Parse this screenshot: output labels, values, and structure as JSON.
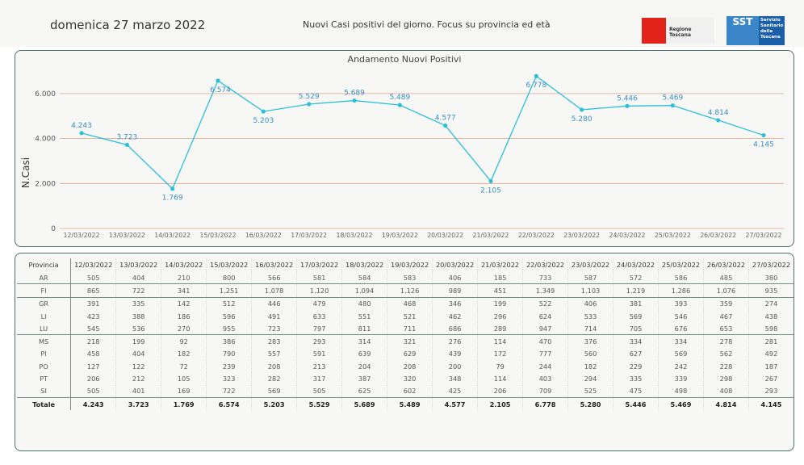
{
  "header": {
    "date": "domenica 27 marzo 2022",
    "subtitle": "Nuovi Casi positivi del giorno. Focus su provincia ed età",
    "logo_regione": "Regione Toscana",
    "logo_sst": "SST",
    "logo_sst_text": "Servizio Sanitario della Toscana"
  },
  "chart_data": {
    "type": "line",
    "title": "Andamento Nuovi Positivi",
    "xlabel": "",
    "ylabel": "N.Casi",
    "categories": [
      "12/03/2022",
      "13/03/2022",
      "14/03/2022",
      "15/03/2022",
      "16/03/2022",
      "17/03/2022",
      "18/03/2022",
      "19/03/2022",
      "20/03/2022",
      "21/03/2022",
      "22/03/2022",
      "23/03/2022",
      "24/03/2022",
      "25/03/2022",
      "26/03/2022",
      "27/03/2022"
    ],
    "values": [
      4243,
      3723,
      1769,
      6574,
      5203,
      5529,
      5689,
      5489,
      4577,
      2105,
      6778,
      5280,
      5446,
      5469,
      4814,
      4145
    ],
    "labels": [
      "4.243",
      "3.723",
      "1.769",
      "6.574",
      "5.203",
      "5.529",
      "5.689",
      "5.489",
      "4.577",
      "2.105",
      "6.778",
      "5.280",
      "5.446",
      "5.469",
      "4.814",
      "4.145"
    ],
    "label_side": [
      "above",
      "above",
      "below",
      "below",
      "below",
      "above",
      "above",
      "above",
      "above",
      "below",
      "below",
      "below",
      "above",
      "above",
      "above",
      "below"
    ],
    "yticks": [
      0,
      2000,
      4000,
      6000
    ],
    "ytick_labels": [
      "0",
      "2.000",
      "4.000",
      "6.000"
    ],
    "ylim": [
      0,
      6800
    ],
    "grid": true,
    "colors": {
      "line": "#2bbfd8",
      "grid": "#e0a080",
      "label": "#3a8ec0"
    }
  },
  "table": {
    "header": "Provincia",
    "rows": [
      {
        "name": "AR",
        "values": [
          "505",
          "404",
          "210",
          "800",
          "566",
          "581",
          "584",
          "583",
          "406",
          "185",
          "733",
          "587",
          "572",
          "586",
          "485",
          "380"
        ]
      },
      {
        "name": "FI",
        "values": [
          "865",
          "722",
          "341",
          "1.251",
          "1.078",
          "1.120",
          "1.094",
          "1.126",
          "989",
          "451",
          "1.349",
          "1.103",
          "1.219",
          "1.286",
          "1.076",
          "935"
        ]
      },
      {
        "name": "GR",
        "values": [
          "391",
          "335",
          "142",
          "512",
          "446",
          "479",
          "480",
          "468",
          "346",
          "199",
          "522",
          "406",
          "381",
          "393",
          "359",
          "274"
        ]
      },
      {
        "name": "LI",
        "values": [
          "423",
          "388",
          "186",
          "596",
          "491",
          "633",
          "551",
          "521",
          "462",
          "296",
          "624",
          "533",
          "569",
          "546",
          "467",
          "438"
        ]
      },
      {
        "name": "LU",
        "values": [
          "545",
          "536",
          "270",
          "955",
          "723",
          "797",
          "811",
          "711",
          "686",
          "289",
          "947",
          "714",
          "705",
          "676",
          "653",
          "598"
        ]
      },
      {
        "name": "MS",
        "values": [
          "218",
          "199",
          "92",
          "386",
          "283",
          "293",
          "314",
          "321",
          "276",
          "114",
          "470",
          "376",
          "334",
          "334",
          "278",
          "281"
        ]
      },
      {
        "name": "PI",
        "values": [
          "458",
          "404",
          "182",
          "790",
          "557",
          "591",
          "639",
          "629",
          "439",
          "172",
          "777",
          "560",
          "627",
          "569",
          "562",
          "492"
        ]
      },
      {
        "name": "PO",
        "values": [
          "127",
          "122",
          "72",
          "239",
          "208",
          "213",
          "204",
          "208",
          "200",
          "79",
          "244",
          "182",
          "229",
          "242",
          "228",
          "187"
        ]
      },
      {
        "name": "PT",
        "values": [
          "206",
          "212",
          "105",
          "323",
          "282",
          "317",
          "387",
          "320",
          "348",
          "114",
          "403",
          "294",
          "335",
          "339",
          "298",
          "267"
        ]
      },
      {
        "name": "SI",
        "values": [
          "505",
          "401",
          "169",
          "722",
          "569",
          "505",
          "625",
          "602",
          "425",
          "206",
          "709",
          "525",
          "475",
          "498",
          "408",
          "293"
        ]
      }
    ],
    "total": {
      "name": "Totale",
      "values": [
        "4.243",
        "3.723",
        "1.769",
        "6.574",
        "5.203",
        "5.529",
        "5.689",
        "5.489",
        "4.577",
        "2.105",
        "6.778",
        "5.280",
        "5.446",
        "5.469",
        "4.814",
        "4.145"
      ]
    }
  }
}
